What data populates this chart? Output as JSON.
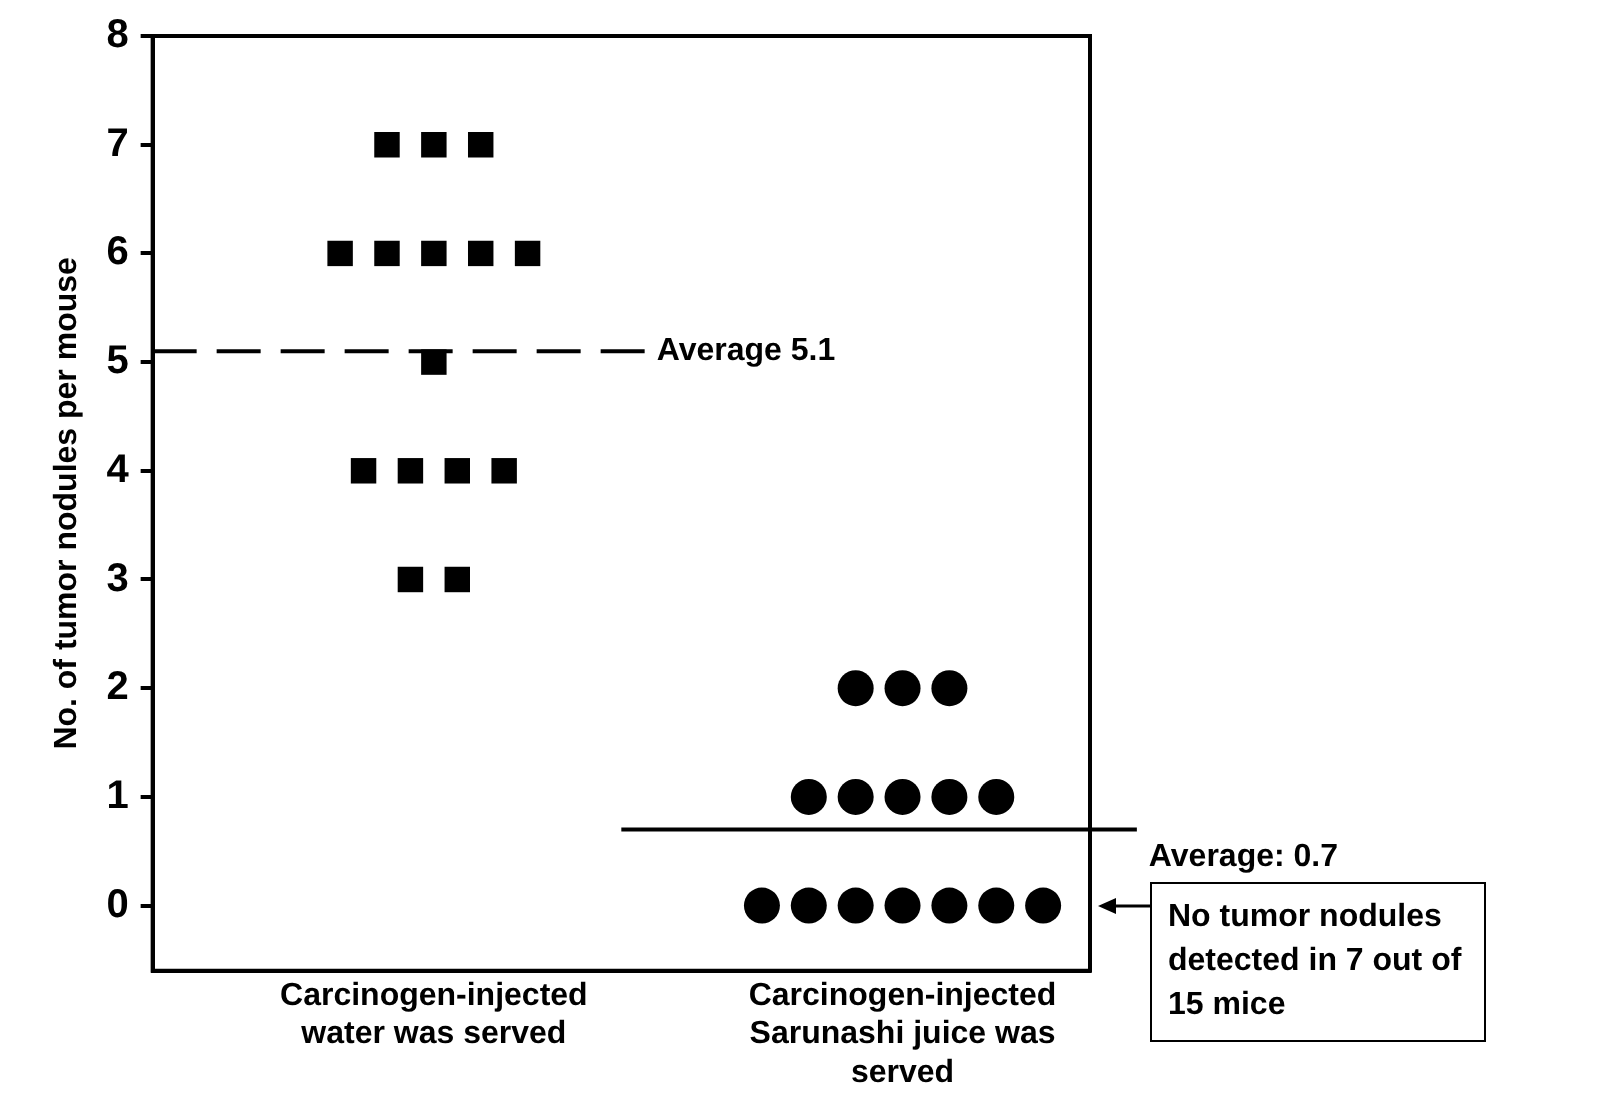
{
  "chart_data": {
    "type": "scatter",
    "ylabel": "No. of tumor nodules per mouse",
    "categories": [
      "Carcinogen-injected water was served",
      "Carcinogen-injected Sarunashi juice was served"
    ],
    "series": [
      {
        "marker": "square",
        "color": "#000000",
        "x": [
          "Carcinogen-injected water was served",
          "Carcinogen-injected water was served",
          "Carcinogen-injected water was served",
          "Carcinogen-injected water was served",
          "Carcinogen-injected water was served",
          "Carcinogen-injected water was served",
          "Carcinogen-injected water was served",
          "Carcinogen-injected water was served",
          "Carcinogen-injected water was served",
          "Carcinogen-injected water was served",
          "Carcinogen-injected water was served",
          "Carcinogen-injected water was served",
          "Carcinogen-injected water was served",
          "Carcinogen-injected water was served",
          "Carcinogen-injected water was served"
        ],
        "values": [
          7,
          7,
          7,
          6,
          6,
          6,
          6,
          6,
          5,
          4,
          4,
          4,
          4,
          3,
          3
        ]
      },
      {
        "marker": "circle",
        "color": "#000000",
        "x": [
          "Carcinogen-injected Sarunashi juice was served",
          "Carcinogen-injected Sarunashi juice was served",
          "Carcinogen-injected Sarunashi juice was served",
          "Carcinogen-injected Sarunashi juice was served",
          "Carcinogen-injected Sarunashi juice was served",
          "Carcinogen-injected Sarunashi juice was served",
          "Carcinogen-injected Sarunashi juice was served",
          "Carcinogen-injected Sarunashi juice was served",
          "Carcinogen-injected Sarunashi juice was served",
          "Carcinogen-injected Sarunashi juice was served",
          "Carcinogen-injected Sarunashi juice was served",
          "Carcinogen-injected Sarunashi juice was served",
          "Carcinogen-injected Sarunashi juice was served",
          "Carcinogen-injected Sarunashi juice was served",
          "Carcinogen-injected Sarunashi juice was served"
        ],
        "values": [
          2,
          2,
          2,
          1,
          1,
          1,
          1,
          1,
          0,
          0,
          0,
          0,
          0,
          0,
          0
        ]
      }
    ],
    "ref_lines": [
      {
        "axis": "y",
        "value": 5.1,
        "label": "Average 5.1",
        "color": "#000000",
        "line_style": "dashed"
      },
      {
        "axis": "y",
        "value": 0.7,
        "label": "Average: 0.7",
        "color": "#000000",
        "line_style": "solid"
      }
    ],
    "annotations": [
      "No tumor nodules detected in 7 out of 15 mice"
    ],
    "ylim": [
      -0.6,
      8
    ],
    "yticks": [
      0,
      1,
      2,
      3,
      4,
      5,
      6,
      7,
      8
    ],
    "grid": false,
    "legend": false
  }
}
